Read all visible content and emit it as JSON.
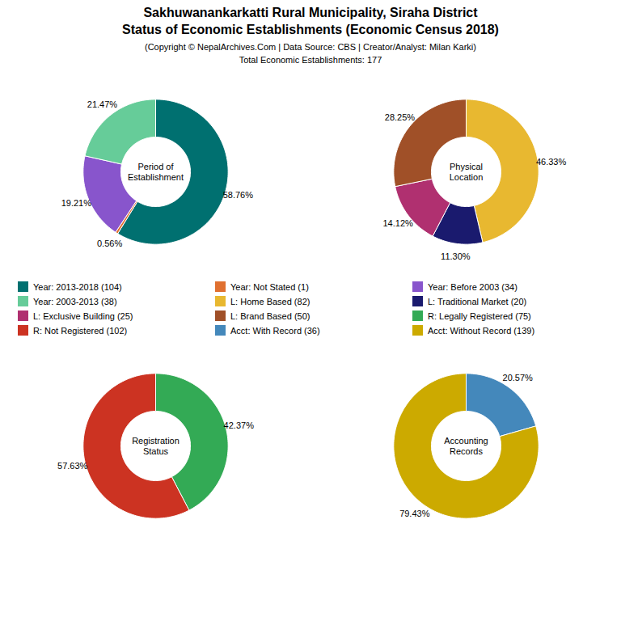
{
  "title": "Sakhuwanankarkatti Rural Municipality, Siraha District\nStatus of Economic Establishments (Economic Census 2018)",
  "subtitle": "(Copyright © NepalArchives.Com | Data Source: CBS | Creator/Analyst: Milan Karki)\nTotal Economic Establishments: 177",
  "chart_data": [
    {
      "type": "pie",
      "title": "Period of\nEstablishment",
      "categories": [
        "Year: 2013-2018 (104)",
        "Year: Not Stated (1)",
        "Year: Before 2003 (34)",
        "Year: 2003-2013 (38)"
      ],
      "values": [
        58.76,
        0.56,
        19.21,
        21.47
      ],
      "value_labels": [
        "58.76%",
        "0.56%",
        "19.21%",
        "21.47%"
      ],
      "colors": [
        "#007070",
        "#e07030",
        "#8855cc",
        "#66cc99"
      ]
    },
    {
      "type": "pie",
      "title": "Physical\nLocation",
      "categories": [
        "L: Home Based (82)",
        "L: Traditional Market (20)",
        "L: Exclusive Building (25)",
        "L: Brand Based (50)"
      ],
      "values": [
        46.33,
        11.3,
        14.12,
        28.25
      ],
      "value_labels": [
        "46.33%",
        "11.30%",
        "14.12%",
        "28.25%"
      ],
      "colors": [
        "#e8b830",
        "#1a1a6e",
        "#b03070",
        "#a05028"
      ]
    },
    {
      "type": "pie",
      "title": "Registration\nStatus",
      "categories": [
        "R: Legally Registered (75)",
        "R: Not Registered (102)"
      ],
      "values": [
        42.37,
        57.63
      ],
      "value_labels": [
        "42.37%",
        "57.63%"
      ],
      "colors": [
        "#33aa55",
        "#cc3322"
      ]
    },
    {
      "type": "pie",
      "title": "Accounting\nRecords",
      "categories": [
        "Acct: With Record (36)",
        "Acct: Without Record (139)"
      ],
      "values": [
        20.57,
        79.43
      ],
      "value_labels": [
        "20.57%",
        "79.43%"
      ],
      "colors": [
        "#4488bb",
        "#ccaa00"
      ]
    }
  ]
}
